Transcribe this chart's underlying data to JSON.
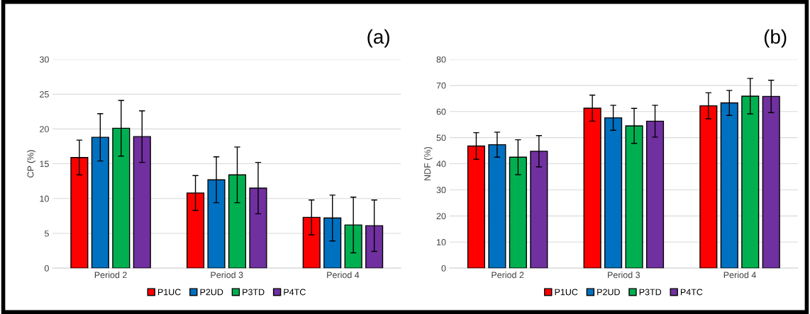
{
  "chart_data": [
    {
      "type": "bar",
      "ylabel": "CP (%)",
      "annotations": [
        "(a)"
      ],
      "categories": [
        "Period 2",
        "Period 3",
        "Period 4"
      ],
      "ylim": [
        0,
        30
      ],
      "yticks": [
        0,
        5,
        10,
        15,
        20,
        25,
        30
      ],
      "grid": "y",
      "legend": "bottom",
      "series": [
        {
          "name": "P1UC",
          "color": "#ff0000",
          "values": [
            15.9,
            10.8,
            7.3
          ],
          "errors": [
            2.5,
            2.5,
            2.5
          ]
        },
        {
          "name": "P2UD",
          "color": "#0070c0",
          "values": [
            18.8,
            12.7,
            7.2
          ],
          "errors": [
            3.4,
            3.3,
            3.3
          ]
        },
        {
          "name": "P3TD",
          "color": "#00b050",
          "values": [
            20.1,
            13.4,
            6.2
          ],
          "errors": [
            4.0,
            4.0,
            4.0
          ]
        },
        {
          "name": "P4TC",
          "color": "#7030a0",
          "values": [
            18.9,
            11.5,
            6.1
          ],
          "errors": [
            3.7,
            3.7,
            3.7
          ]
        }
      ]
    },
    {
      "type": "bar",
      "ylabel": "NDF (%)",
      "annotations": [
        "(b)"
      ],
      "categories": [
        "Period 2",
        "Period 3",
        "Period 4"
      ],
      "ylim": [
        0,
        80
      ],
      "yticks": [
        0,
        10,
        20,
        30,
        40,
        50,
        60,
        70,
        80
      ],
      "grid": "y",
      "legend": "bottom",
      "series": [
        {
          "name": "P1UC",
          "color": "#ff0000",
          "values": [
            46.8,
            61.3,
            62.2
          ],
          "errors": [
            5.1,
            5.0,
            5.0
          ]
        },
        {
          "name": "P2UD",
          "color": "#0070c0",
          "values": [
            47.3,
            57.6,
            63.3
          ],
          "errors": [
            4.8,
            4.8,
            4.8
          ]
        },
        {
          "name": "P3TD",
          "color": "#00b050",
          "values": [
            42.5,
            54.5,
            65.9
          ],
          "errors": [
            6.7,
            6.7,
            6.8
          ]
        },
        {
          "name": "P4TC",
          "color": "#7030a0",
          "values": [
            44.8,
            56.3,
            65.8
          ],
          "errors": [
            6.0,
            6.1,
            6.2
          ]
        }
      ]
    }
  ]
}
